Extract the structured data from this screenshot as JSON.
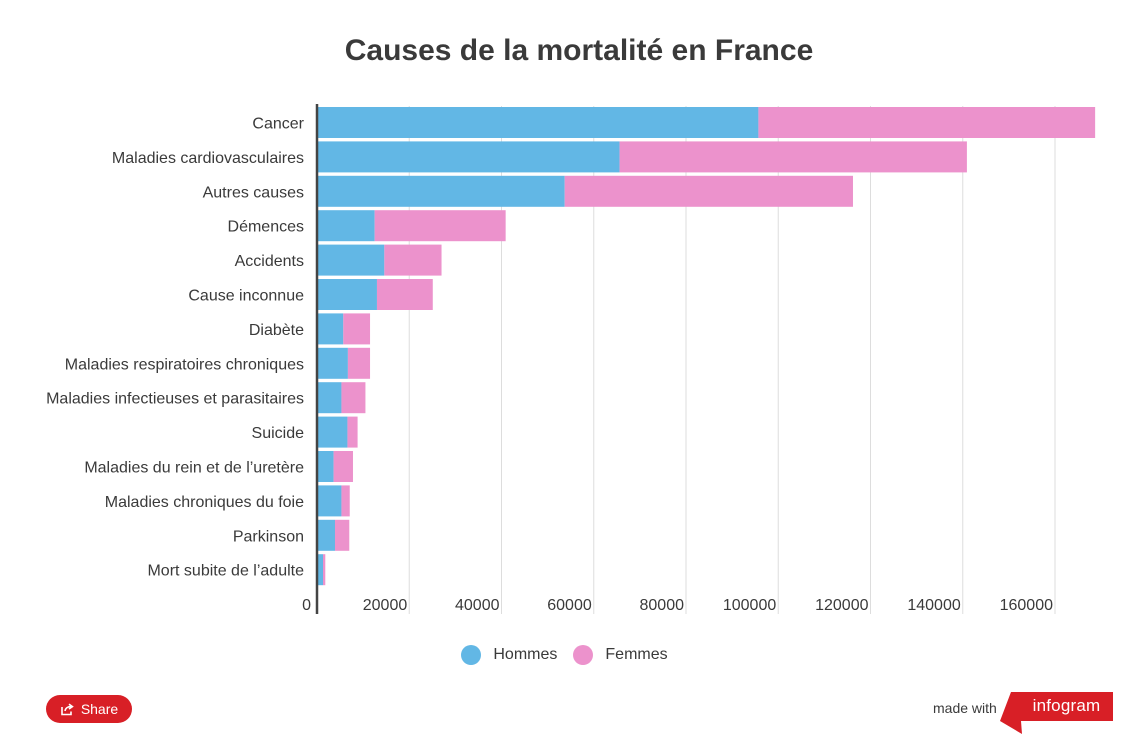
{
  "chart_data": {
    "type": "bar",
    "orientation": "horizontal",
    "stacked": true,
    "title": "Causes de la mortalité en France",
    "categories": [
      "Cancer",
      "Maladies cardiovasculaires",
      "Autres causes",
      "Démences",
      "Accidents",
      "Cause inconnue",
      "Diabète",
      "Maladies respiratoires chroniques",
      "Maladies infectieuses et parasitaires",
      "Suicide",
      "Maladies du rein et de l’uretère",
      "Maladies chroniques du foie",
      "Parkinson",
      "Mort subite de l’adulte"
    ],
    "series": [
      {
        "name": "Hommes",
        "color": "#62b7e5",
        "values": [
          95700,
          65600,
          53700,
          12500,
          14600,
          13000,
          5700,
          6700,
          5300,
          6600,
          3600,
          5300,
          3900,
          1300
        ]
      },
      {
        "name": "Femmes",
        "color": "#ec92cc",
        "values": [
          73000,
          75300,
          62500,
          28400,
          12400,
          12100,
          5800,
          4800,
          5200,
          2200,
          4200,
          1800,
          3100,
          500
        ]
      }
    ],
    "xlim": [
      0,
      170000
    ],
    "xticks": [
      "0",
      "20000",
      "40000",
      "60000",
      "80000",
      "100000",
      "120000",
      "140000",
      "160000"
    ],
    "xtick_values": [
      0,
      20000,
      40000,
      60000,
      80000,
      100000,
      120000,
      140000,
      160000
    ],
    "grid": true,
    "legend_position": "bottom"
  },
  "footer": {
    "share_label": "Share",
    "made_with_label": "made with",
    "brand_label": "infogram",
    "brand_color": "#d81f26"
  }
}
